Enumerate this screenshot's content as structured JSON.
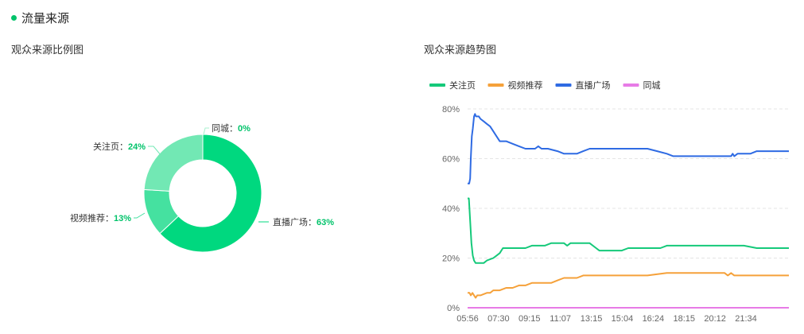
{
  "section": {
    "title": "流量来源",
    "accent": "#00c36a"
  },
  "donut": {
    "title": "观众来源比例图",
    "slices": [
      {
        "name": "直播广场",
        "value": 63,
        "label": "63%",
        "color": "#00d87f"
      },
      {
        "name": "视频推荐",
        "value": 13,
        "label": "13%",
        "color": "#45e1a0"
      },
      {
        "name": "关注页",
        "value": 24,
        "label": "24%",
        "color": "#72e8b4"
      },
      {
        "name": "同城",
        "value": 0,
        "label": "0%",
        "color": "#a8f0cf"
      }
    ]
  },
  "trend": {
    "title": "观众来源趋势图",
    "legend": [
      {
        "name": "关注页",
        "color": "#15c97a"
      },
      {
        "name": "视频推荐",
        "color": "#f5a13a"
      },
      {
        "name": "直播广场",
        "color": "#2f6be3"
      },
      {
        "name": "同城",
        "color": "#e77be6"
      }
    ]
  },
  "chart_data": [
    {
      "type": "pie",
      "title": "观众来源比例图",
      "categories": [
        "直播广场",
        "视频推荐",
        "关注页",
        "同城"
      ],
      "values": [
        63,
        13,
        24,
        0
      ]
    },
    {
      "type": "line",
      "title": "观众来源趋势图",
      "x_ticks": [
        "05:56",
        "07:30",
        "09:15",
        "11:07",
        "13:15",
        "15:04",
        "16:24",
        "18:15",
        "20:12",
        "21:34"
      ],
      "y_ticks": [
        "0%",
        "20%",
        "40%",
        "60%",
        "80%"
      ],
      "ylim": [
        0,
        80
      ],
      "x_range": [
        0,
        100
      ],
      "series": [
        {
          "name": "直播广场",
          "color": "#2f6be3",
          "points": [
            [
              0,
              50
            ],
            [
              0.5,
              50
            ],
            [
              0.8,
              52
            ],
            [
              1,
              60
            ],
            [
              1.3,
              69
            ],
            [
              1.6,
              72
            ],
            [
              2,
              77
            ],
            [
              2.3,
              78
            ],
            [
              2.6,
              77
            ],
            [
              3.5,
              77
            ],
            [
              4,
              76
            ],
            [
              5,
              75
            ],
            [
              6,
              74
            ],
            [
              7,
              73
            ],
            [
              8,
              71
            ],
            [
              9,
              69
            ],
            [
              10,
              67
            ],
            [
              12,
              67
            ],
            [
              14,
              66
            ],
            [
              16,
              65
            ],
            [
              18,
              64
            ],
            [
              21,
              64
            ],
            [
              22,
              65
            ],
            [
              23,
              64
            ],
            [
              25,
              64
            ],
            [
              28,
              63
            ],
            [
              30,
              62
            ],
            [
              32,
              62
            ],
            [
              34,
              62
            ],
            [
              36,
              63
            ],
            [
              38,
              64
            ],
            [
              42,
              64
            ],
            [
              46,
              64
            ],
            [
              50,
              64
            ],
            [
              56,
              64
            ],
            [
              59,
              63
            ],
            [
              62,
              62
            ],
            [
              64,
              61
            ],
            [
              68,
              61
            ],
            [
              72,
              61
            ],
            [
              76,
              61
            ],
            [
              80,
              61
            ],
            [
              82,
              61
            ],
            [
              82.5,
              62
            ],
            [
              83,
              61
            ],
            [
              84,
              62
            ],
            [
              86,
              62
            ],
            [
              88,
              62
            ],
            [
              90,
              63
            ],
            [
              95,
              63
            ],
            [
              100,
              63
            ]
          ]
        },
        {
          "name": "关注页",
          "color": "#15c97a",
          "points": [
            [
              0,
              44
            ],
            [
              0.4,
              44
            ],
            [
              0.8,
              35
            ],
            [
              1.2,
              26
            ],
            [
              1.6,
              21
            ],
            [
              2,
              19
            ],
            [
              2.5,
              18
            ],
            [
              5,
              18
            ],
            [
              6,
              19
            ],
            [
              8,
              20
            ],
            [
              9,
              21
            ],
            [
              10,
              22
            ],
            [
              11,
              24
            ],
            [
              14,
              24
            ],
            [
              18,
              24
            ],
            [
              20,
              25
            ],
            [
              24,
              25
            ],
            [
              26,
              26
            ],
            [
              30,
              26
            ],
            [
              31,
              25
            ],
            [
              32,
              26
            ],
            [
              38,
              26
            ],
            [
              40,
              24
            ],
            [
              41,
              23
            ],
            [
              48,
              23
            ],
            [
              50,
              24
            ],
            [
              54,
              24
            ],
            [
              60,
              24
            ],
            [
              62,
              25
            ],
            [
              68,
              25
            ],
            [
              72,
              25
            ],
            [
              76,
              25
            ],
            [
              80,
              25
            ],
            [
              86,
              25
            ],
            [
              90,
              24
            ],
            [
              95,
              24
            ],
            [
              100,
              24
            ]
          ]
        },
        {
          "name": "视频推荐",
          "color": "#f5a13a",
          "points": [
            [
              0,
              6
            ],
            [
              0.6,
              6
            ],
            [
              1,
              5
            ],
            [
              1.5,
              6
            ],
            [
              2,
              5
            ],
            [
              2.5,
              4
            ],
            [
              3,
              5
            ],
            [
              4,
              5
            ],
            [
              6,
              6
            ],
            [
              7,
              6
            ],
            [
              8,
              7
            ],
            [
              10,
              7
            ],
            [
              12,
              8
            ],
            [
              14,
              8
            ],
            [
              16,
              9
            ],
            [
              18,
              9
            ],
            [
              20,
              10
            ],
            [
              22,
              10
            ],
            [
              26,
              10
            ],
            [
              28,
              11
            ],
            [
              30,
              12
            ],
            [
              34,
              12
            ],
            [
              36,
              13
            ],
            [
              40,
              13
            ],
            [
              46,
              13
            ],
            [
              50,
              13
            ],
            [
              56,
              13
            ],
            [
              62,
              14
            ],
            [
              68,
              14
            ],
            [
              74,
              14
            ],
            [
              80,
              14
            ],
            [
              81,
              13
            ],
            [
              82,
              14
            ],
            [
              83,
              13
            ],
            [
              86,
              13
            ],
            [
              92,
              13
            ],
            [
              96,
              13
            ],
            [
              100,
              13
            ]
          ]
        },
        {
          "name": "同城",
          "color": "#e77be6",
          "points": [
            [
              0,
              0
            ],
            [
              100,
              0
            ]
          ]
        }
      ]
    }
  ]
}
